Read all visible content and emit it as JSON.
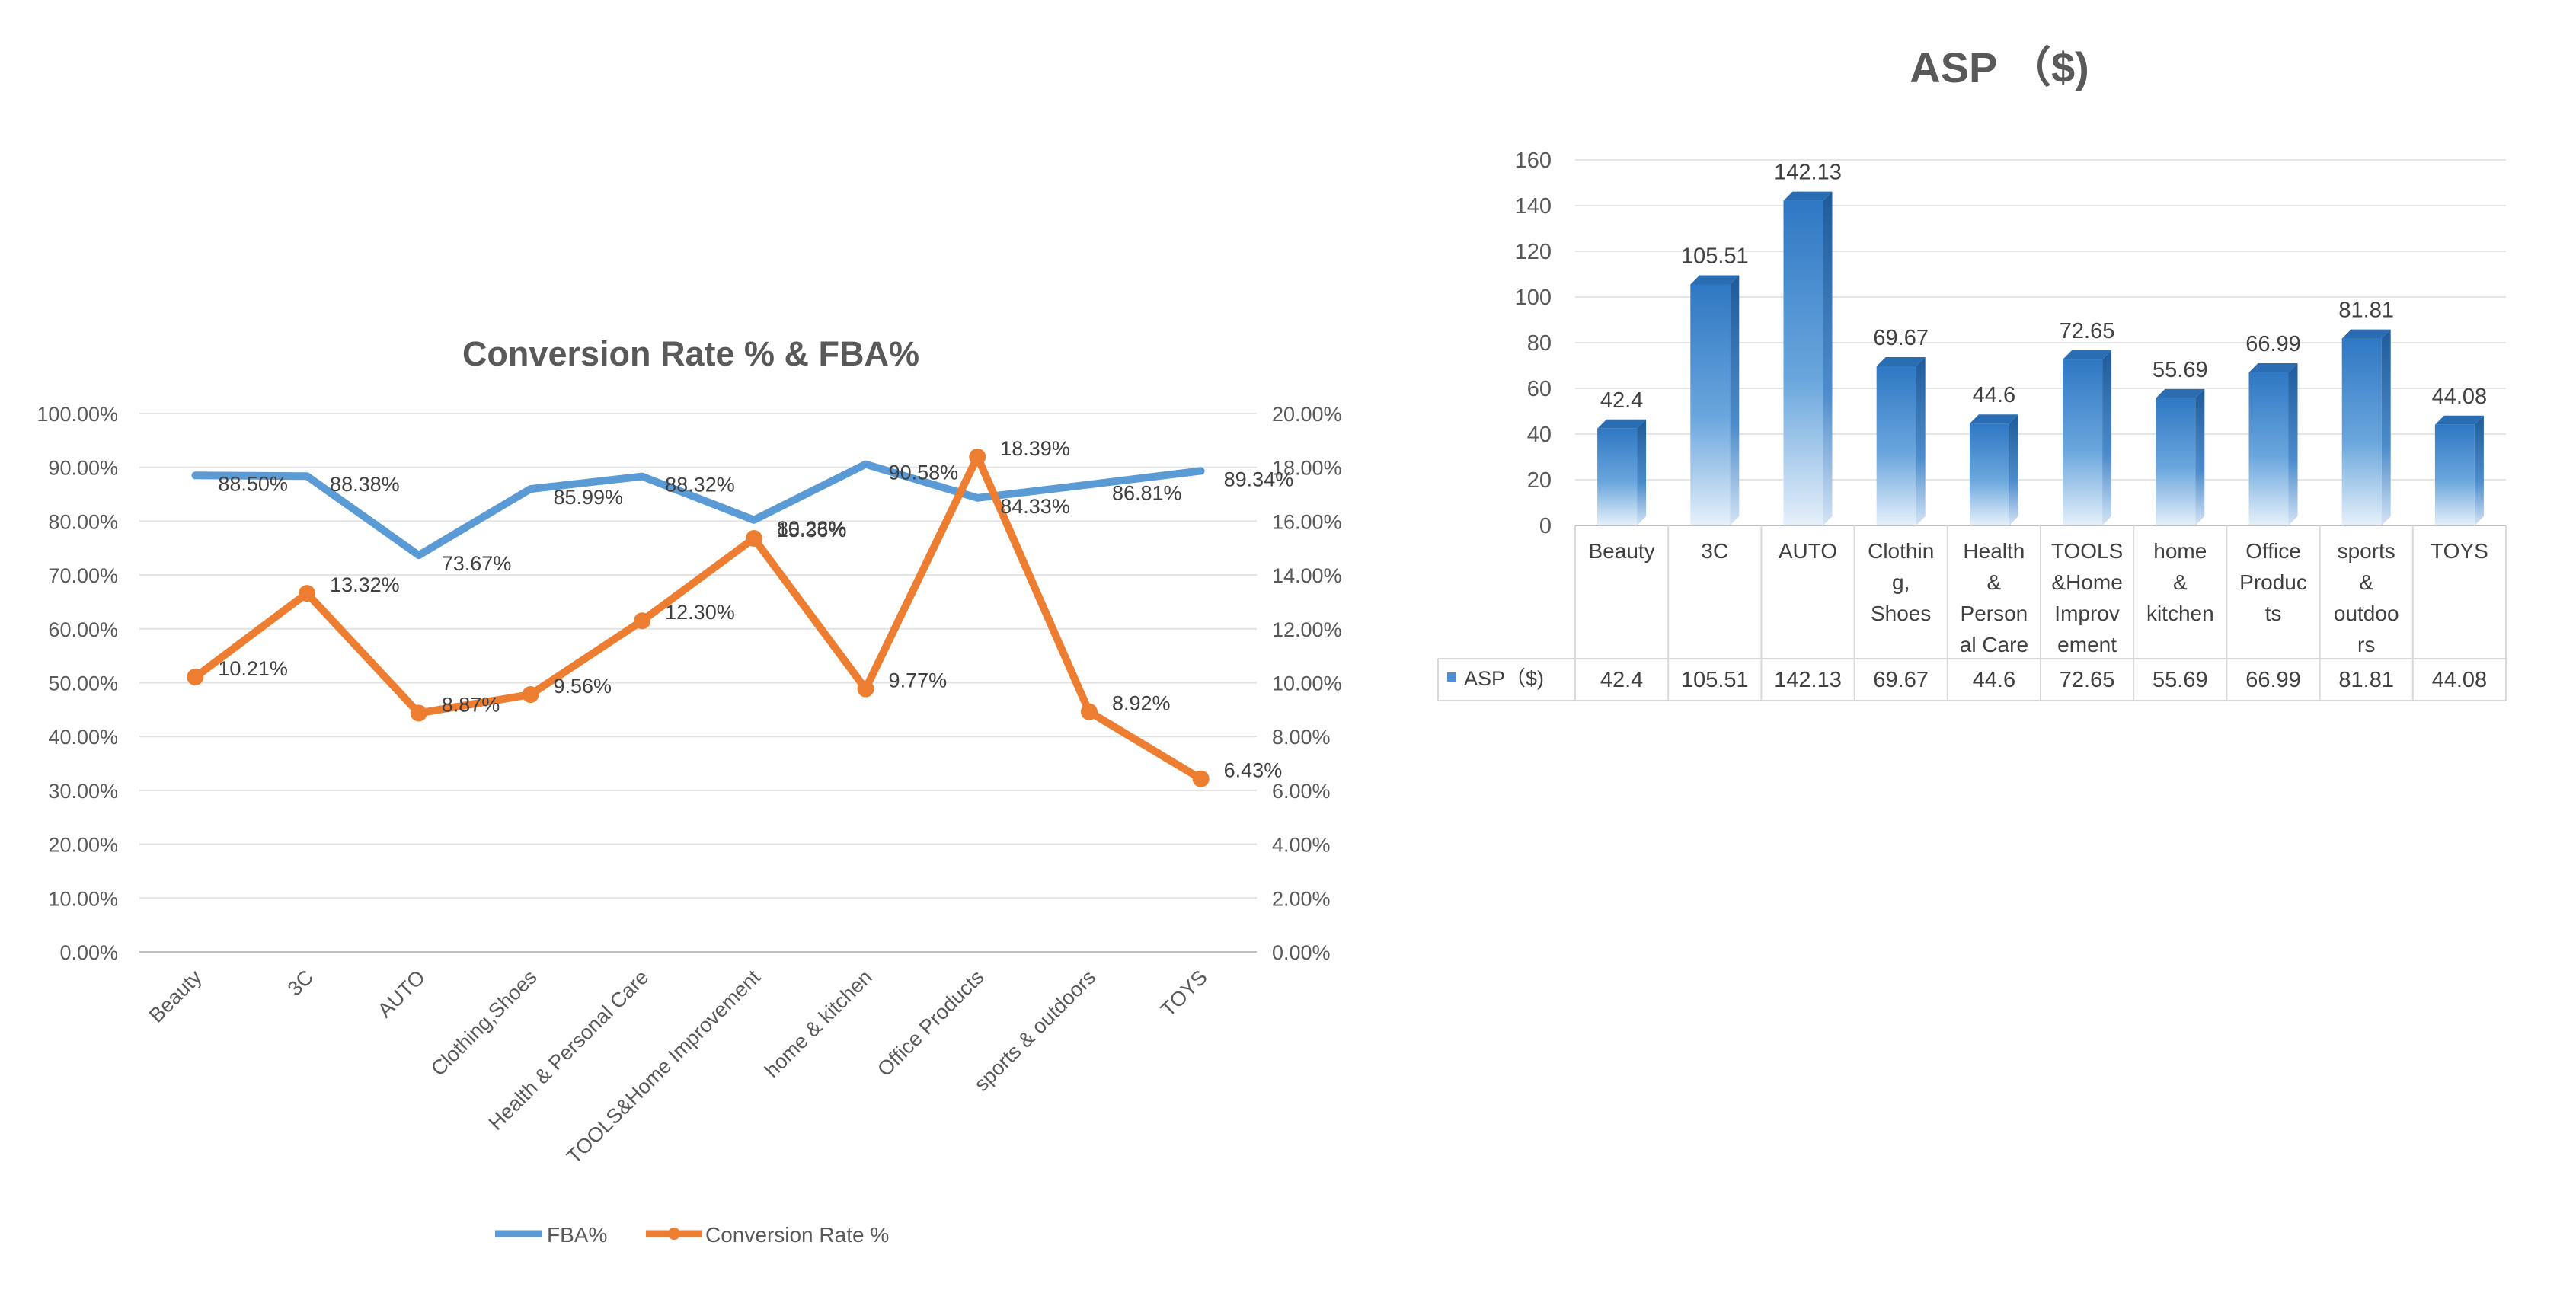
{
  "chart_data": [
    {
      "type": "line",
      "title": "Conversion Rate % & FBA%",
      "categories": [
        "Beauty",
        "3C",
        "AUTO",
        "Clothing,Shoes",
        "Health & Personal Care",
        "TOOLS&Home Improvement",
        "home & kitchen",
        "Office Products",
        "sports & outdoors",
        "TOYS"
      ],
      "series": [
        {
          "name": "FBA%",
          "axis": "left",
          "color": "#5b9bd5",
          "values": [
            88.5,
            88.38,
            73.67,
            85.99,
            88.32,
            80.23,
            90.58,
            84.33,
            86.81,
            89.34
          ],
          "labels": [
            "88.50%",
            "88.38%",
            "73.67%",
            "85.99%",
            "88.32%",
            "80.23%",
            "90.58%",
            "84.33%",
            "86.81%",
            "89.34%"
          ]
        },
        {
          "name": "Conversion Rate %",
          "axis": "right",
          "color": "#ed7d31",
          "values": [
            10.21,
            13.32,
            8.87,
            9.56,
            12.3,
            15.36,
            9.77,
            18.39,
            8.92,
            6.43
          ],
          "labels": [
            "10.21%",
            "13.32%",
            "8.87%",
            "9.56%",
            "12.30%",
            "15.36%",
            "9.77%",
            "18.39%",
            "8.92%",
            "6.43%"
          ]
        }
      ],
      "y_left": {
        "ylim": [
          0,
          100
        ],
        "ticks": [
          "0.00%",
          "10.00%",
          "20.00%",
          "30.00%",
          "40.00%",
          "50.00%",
          "60.00%",
          "70.00%",
          "80.00%",
          "90.00%",
          "100.00%"
        ]
      },
      "y_right": {
        "ylim": [
          0,
          20
        ],
        "ticks": [
          "0.00%",
          "2.00%",
          "4.00%",
          "6.00%",
          "8.00%",
          "10.00%",
          "12.00%",
          "14.00%",
          "16.00%",
          "18.00%",
          "20.00%"
        ]
      },
      "grid": true,
      "legend": "bottom"
    },
    {
      "type": "bar",
      "title": "ASP （$)",
      "categories": [
        "Beauty",
        "3C",
        "AUTO",
        "Clothing, Shoes",
        "Health & Personal Care",
        "TOOLS &Home Improvement",
        "home & kitchen",
        "Office Products",
        "sports & outdoors",
        "TOYS"
      ],
      "category_table_lines": [
        [
          "Beauty"
        ],
        [
          "3C"
        ],
        [
          "AUTO"
        ],
        [
          "Clothin",
          "g,",
          "Shoes"
        ],
        [
          "Health",
          "&",
          "Person",
          "al Care"
        ],
        [
          "TOOLS",
          "&Home",
          "Improv",
          "ement"
        ],
        [
          "home",
          "&",
          "kitchen"
        ],
        [
          "Office",
          "Produc",
          "ts"
        ],
        [
          "sports",
          "&",
          "outdoo",
          "rs"
        ],
        [
          "TOYS"
        ]
      ],
      "series": [
        {
          "name": "ASP（$)",
          "color": "#4f8fd0",
          "values": [
            42.4,
            105.51,
            142.13,
            69.67,
            44.6,
            72.65,
            55.69,
            66.99,
            81.81,
            44.08
          ],
          "labels": [
            "42.4",
            "105.51",
            "142.13",
            "69.67",
            "44.6",
            "72.65",
            "55.69",
            "66.99",
            "81.81",
            "44.08"
          ]
        }
      ],
      "ylim": [
        0,
        160
      ],
      "ticks": [
        "0",
        "20",
        "40",
        "60",
        "80",
        "100",
        "120",
        "140",
        "160"
      ],
      "grid": true,
      "legend": "data-table"
    }
  ]
}
